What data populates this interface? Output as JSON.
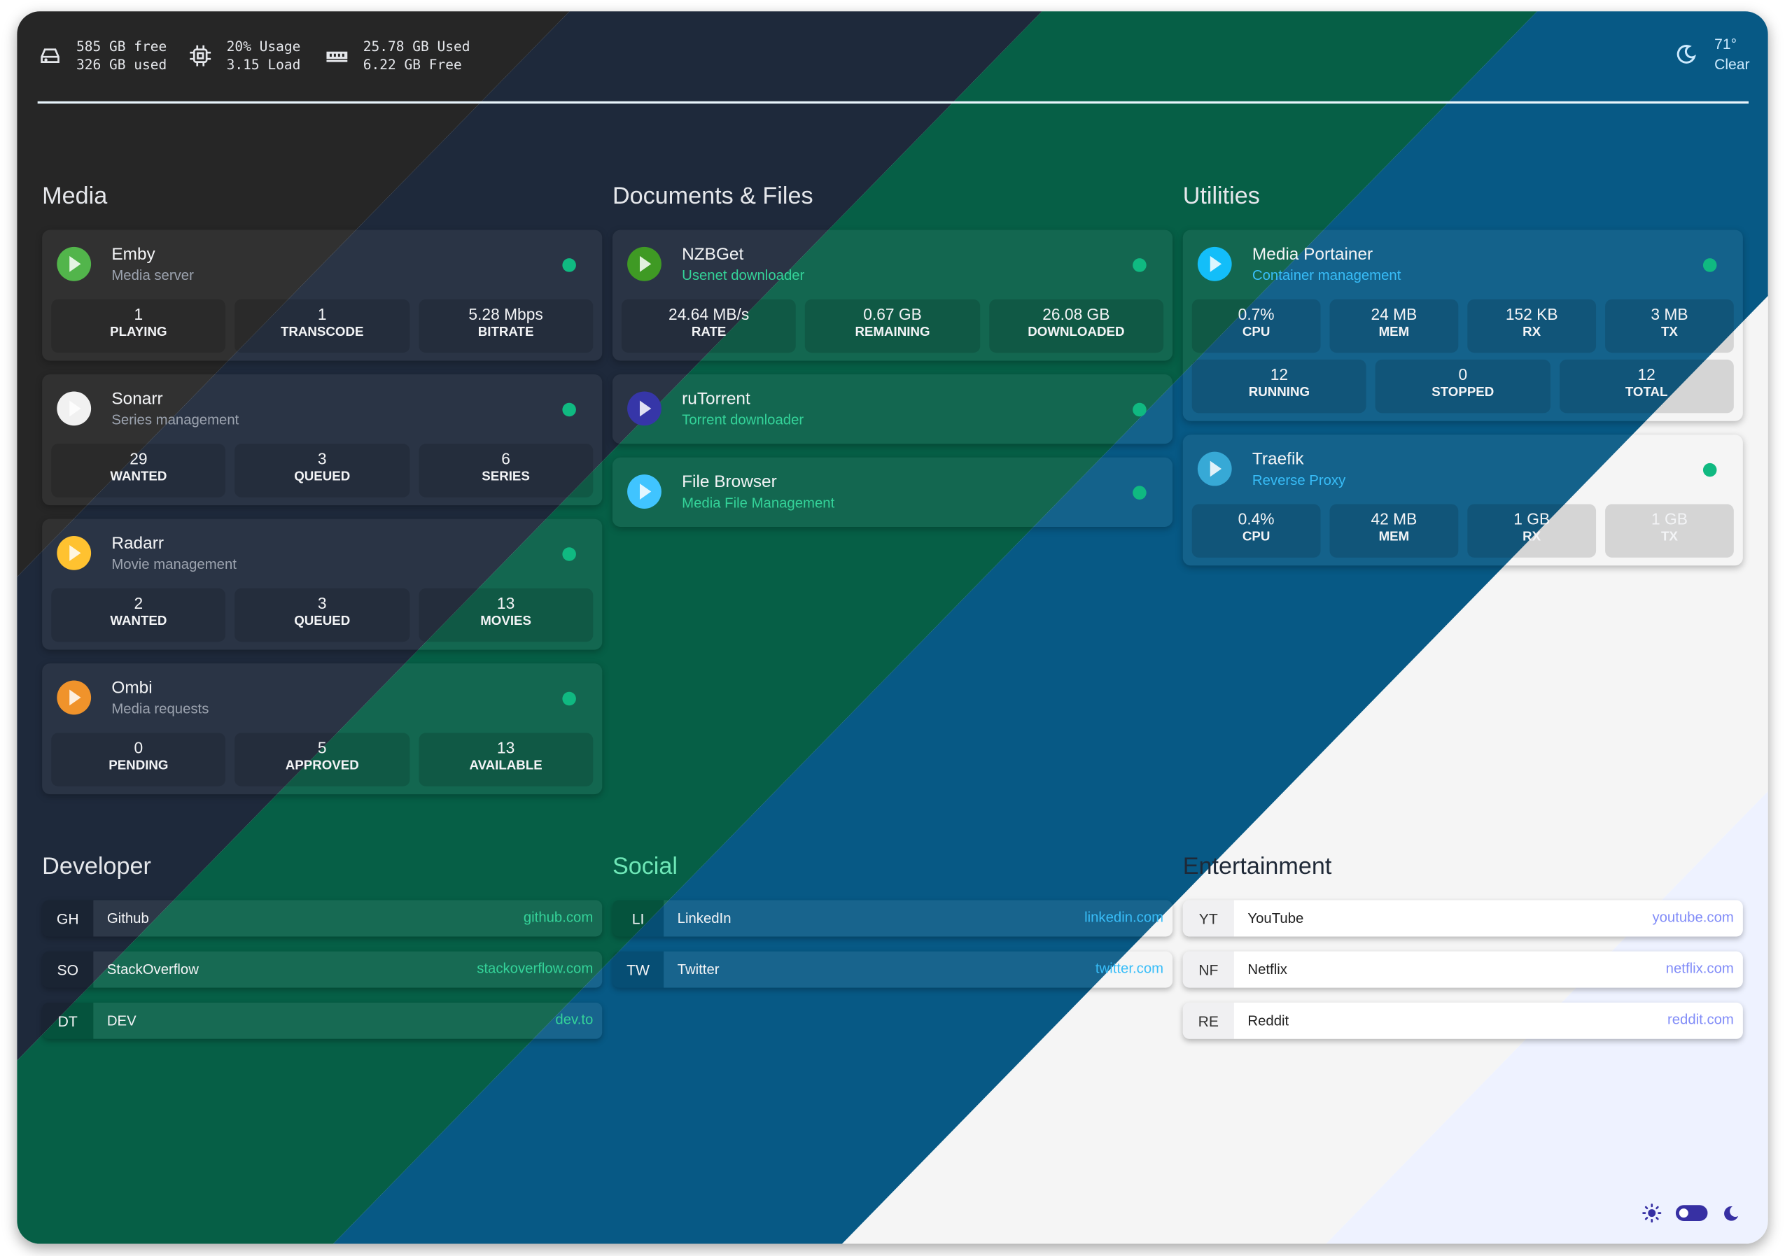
{
  "header": {
    "disk": {
      "icon": "hard-drive-icon",
      "line1": "585 GB free",
      "line2": "326 GB used"
    },
    "cpu": {
      "icon": "cpu-icon",
      "line1": "20% Usage",
      "line2": "3.15 Load"
    },
    "ram": {
      "icon": "memory-icon",
      "line1": "25.78 GB Used",
      "line2": "6.22 GB Free"
    },
    "weather": {
      "icon": "moon-icon",
      "temp": "71°",
      "condition": "Clear"
    }
  },
  "colors": {
    "band_gray": "#262626",
    "band_navy": "#1e293b",
    "band_green": "#065f46",
    "band_blue": "#075985",
    "band_white": "#f5f5f5",
    "band_lavender": "#eef2ff",
    "status_up": "#10b981",
    "toggle": "#3730a3"
  },
  "sections": [
    {
      "title": "Media",
      "cards": [
        {
          "name": "Emby",
          "desc": "Media server",
          "icon": "emby-logo-icon",
          "stats": [
            {
              "value": "1",
              "label": "PLAYING"
            },
            {
              "value": "1",
              "label": "TRANSCODE"
            },
            {
              "value": "5.28 Mbps",
              "label": "BITRATE"
            }
          ]
        },
        {
          "name": "Sonarr",
          "desc": "Series management",
          "icon": "sonarr-logo-icon",
          "stats": [
            {
              "value": "29",
              "label": "WANTED"
            },
            {
              "value": "3",
              "label": "QUEUED"
            },
            {
              "value": "6",
              "label": "SERIES"
            }
          ]
        },
        {
          "name": "Radarr",
          "desc": "Movie management",
          "icon": "radarr-logo-icon",
          "stats": [
            {
              "value": "2",
              "label": "WANTED"
            },
            {
              "value": "3",
              "label": "QUEUED"
            },
            {
              "value": "13",
              "label": "MOVIES"
            }
          ]
        },
        {
          "name": "Ombi",
          "desc": "Media requests",
          "icon": "ombi-logo-icon",
          "stats": [
            {
              "value": "0",
              "label": "PENDING"
            },
            {
              "value": "5",
              "label": "APPROVED"
            },
            {
              "value": "13",
              "label": "AVAILABLE"
            }
          ]
        }
      ]
    },
    {
      "title": "Documents & Files",
      "cards": [
        {
          "name": "NZBGet",
          "desc": "Usenet downloader",
          "icon": "nzbget-logo-icon",
          "stats": [
            {
              "value": "24.64 MB/s",
              "label": "RATE"
            },
            {
              "value": "0.67 GB",
              "label": "REMAINING"
            },
            {
              "value": "26.08 GB",
              "label": "DOWNLOADED"
            }
          ]
        },
        {
          "name": "ruTorrent",
          "desc": "Torrent downloader",
          "icon": "rutorrent-logo-icon",
          "stats": []
        },
        {
          "name": "File Browser",
          "desc": "Media File Management",
          "icon": "filebrowser-logo-icon",
          "stats": []
        }
      ]
    },
    {
      "title": "Utilities",
      "cards": [
        {
          "name": "Media Portainer",
          "desc": "Container management",
          "icon": "portainer-logo-icon",
          "stats": [
            {
              "value": "0.7%",
              "label": "CPU"
            },
            {
              "value": "24 MB",
              "label": "MEM"
            },
            {
              "value": "152 KB",
              "label": "RX"
            },
            {
              "value": "3 MB",
              "label": "TX"
            }
          ],
          "stats2": [
            {
              "value": "12",
              "label": "RUNNING"
            },
            {
              "value": "0",
              "label": "STOPPED"
            },
            {
              "value": "12",
              "label": "TOTAL"
            }
          ]
        },
        {
          "name": "Traefik",
          "desc": "Reverse Proxy",
          "icon": "traefik-logo-icon",
          "stats": [
            {
              "value": "0.4%",
              "label": "CPU"
            },
            {
              "value": "42 MB",
              "label": "MEM"
            },
            {
              "value": "1 GB",
              "label": "RX"
            },
            {
              "value": "1 GB",
              "label": "TX"
            }
          ]
        }
      ]
    }
  ],
  "bookmarks": [
    {
      "title": "Developer",
      "items": [
        {
          "abbr": "GH",
          "name": "Github",
          "url": "github.com"
        },
        {
          "abbr": "SO",
          "name": "StackOverflow",
          "url": "stackoverflow.com"
        },
        {
          "abbr": "DT",
          "name": "DEV",
          "url": "dev.to"
        }
      ]
    },
    {
      "title": "Social",
      "items": [
        {
          "abbr": "LI",
          "name": "LinkedIn",
          "url": "linkedin.com"
        },
        {
          "abbr": "TW",
          "name": "Twitter",
          "url": "twitter.com"
        }
      ]
    },
    {
      "title": "Entertainment",
      "items": [
        {
          "abbr": "YT",
          "name": "YouTube",
          "url": "youtube.com"
        },
        {
          "abbr": "NF",
          "name": "Netflix",
          "url": "netflix.com"
        },
        {
          "abbr": "RE",
          "name": "Reddit",
          "url": "reddit.com"
        }
      ]
    }
  ],
  "footer": {
    "theme_toggle": "dark"
  }
}
